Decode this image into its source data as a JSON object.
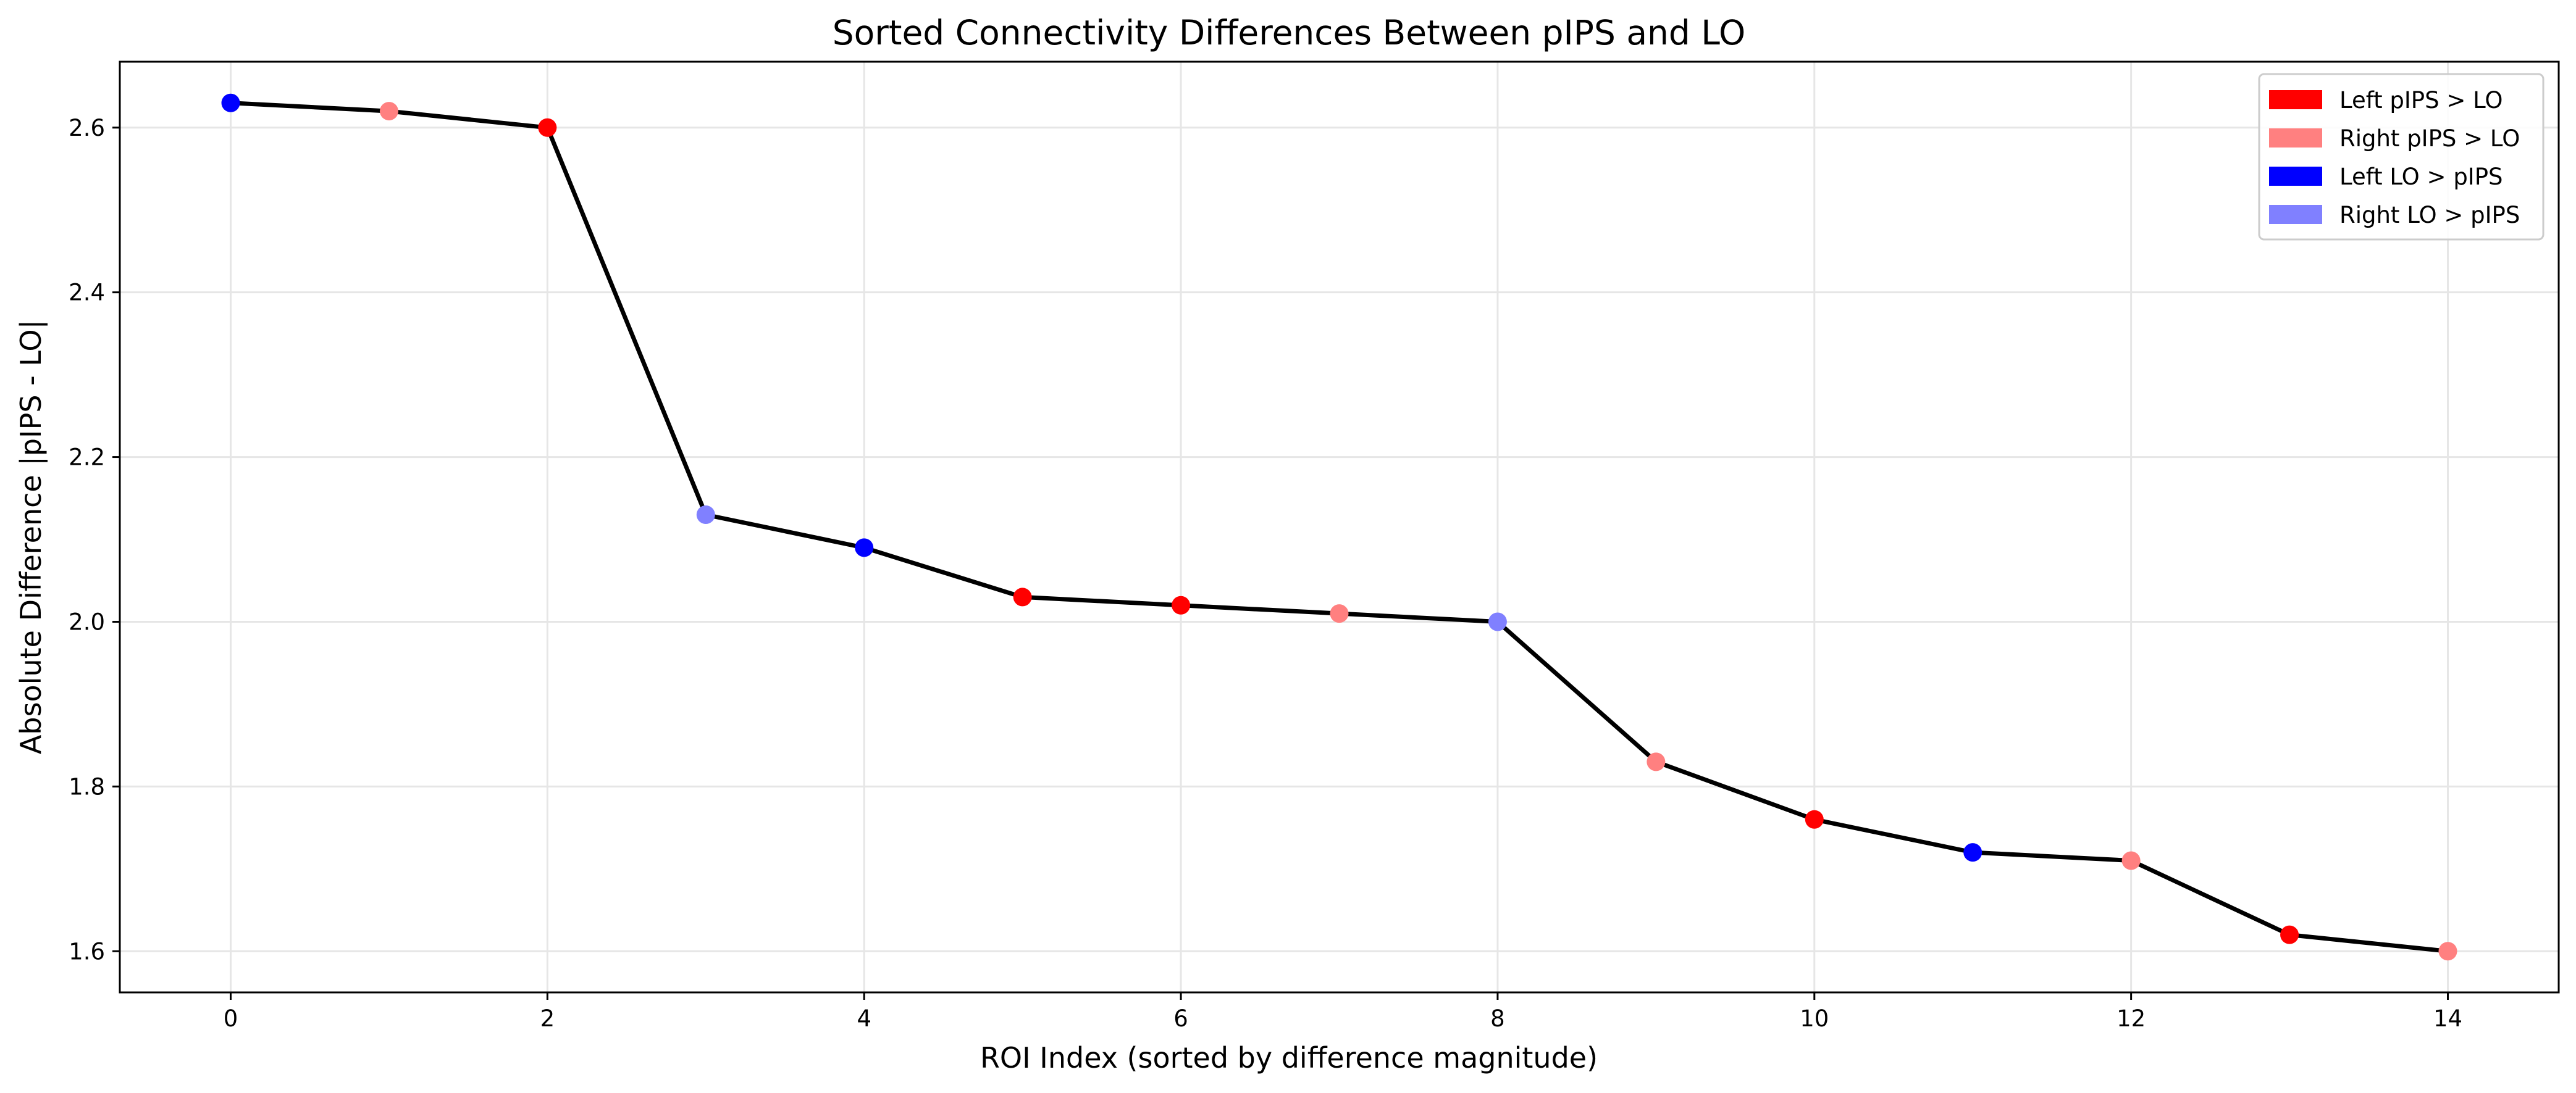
{
  "chart_data": {
    "type": "line",
    "title": "Sorted Connectivity Differences Between pIPS and LO",
    "xlabel": "ROI Index (sorted by difference magnitude)",
    "ylabel": "Absolute Difference |pIPS - LO|",
    "xlim": [
      -0.7,
      14.7
    ],
    "ylim": [
      1.55,
      2.68
    ],
    "xticks": [
      "0",
      "2",
      "4",
      "6",
      "8",
      "10",
      "12",
      "14"
    ],
    "yticks": [
      "1.6",
      "1.8",
      "2.0",
      "2.2",
      "2.4",
      "2.6"
    ],
    "grid": true,
    "line_color": "#000000",
    "legend_position": "top-right",
    "legend": [
      {
        "label": "Left pIPS > LO",
        "color": "#ff0000"
      },
      {
        "label": "Right pIPS > LO",
        "color": "#ff8080"
      },
      {
        "label": "Left LO > pIPS",
        "color": "#0000ff"
      },
      {
        "label": "Right LO > pIPS",
        "color": "#8080ff"
      }
    ],
    "x": [
      0,
      1,
      2,
      3,
      4,
      5,
      6,
      7,
      8,
      9,
      10,
      11,
      12,
      13,
      14
    ],
    "values": [
      2.63,
      2.62,
      2.6,
      2.13,
      2.09,
      2.03,
      2.02,
      2.01,
      2.0,
      1.83,
      1.76,
      1.72,
      1.71,
      1.62,
      1.6
    ],
    "point_colors": [
      "#0000ff",
      "#ff8080",
      "#ff0000",
      "#8080ff",
      "#0000ff",
      "#ff0000",
      "#ff0000",
      "#ff8080",
      "#8080ff",
      "#ff8080",
      "#ff0000",
      "#0000ff",
      "#ff8080",
      "#ff0000",
      "#ff8080"
    ]
  }
}
